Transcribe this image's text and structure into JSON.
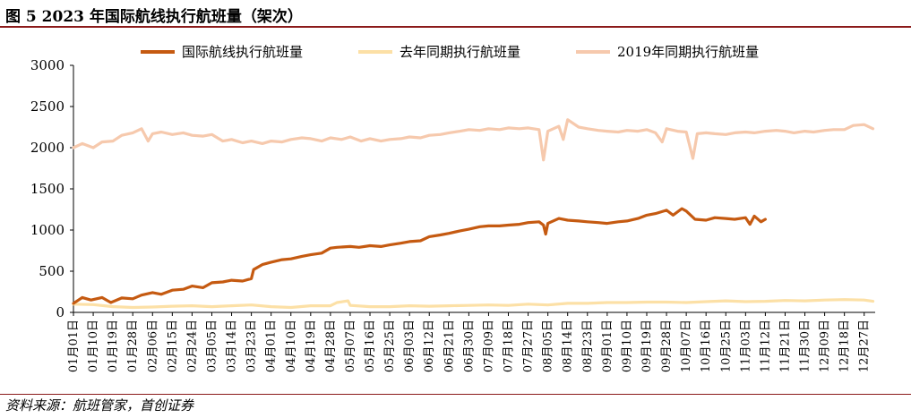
{
  "header": {
    "title": "图 5 2023 年国际航线执行航班量（架次）"
  },
  "footer": {
    "source": "资料来源：航班管家，首创证券"
  },
  "chart_data": {
    "type": "line",
    "title": "",
    "xlabel": "",
    "ylabel": "",
    "ylim": [
      0,
      3000
    ],
    "yticks": [
      0,
      500,
      1000,
      1500,
      2000,
      2500,
      3000
    ],
    "x_tick_labels": [
      "01月01日",
      "01月10日",
      "01月19日",
      "01月28日",
      "02月06日",
      "02月15日",
      "02月24日",
      "03月05日",
      "03月14日",
      "03月23日",
      "04月01日",
      "04月10日",
      "04月19日",
      "04月28日",
      "05月07日",
      "05月16日",
      "05月25日",
      "06月03日",
      "06月12日",
      "06月21日",
      "06月30日",
      "07月09日",
      "07月18日",
      "07月27日",
      "08月05日",
      "08月14日",
      "08月23日",
      "09月01日",
      "09月10日",
      "09月19日",
      "09月28日",
      "10月07日",
      "10月16日",
      "10月25日",
      "11月03日",
      "11月12日",
      "11月21日",
      "11月30日",
      "12月09日",
      "12月18日",
      "12月27日"
    ],
    "x_tick_days": [
      0,
      9,
      18,
      27,
      36,
      45,
      54,
      63,
      72,
      81,
      90,
      99,
      108,
      117,
      126,
      135,
      144,
      153,
      162,
      171,
      180,
      189,
      198,
      207,
      216,
      225,
      234,
      243,
      252,
      261,
      270,
      279,
      288,
      297,
      306,
      315,
      324,
      333,
      342,
      351,
      360
    ],
    "grid": false,
    "legend_position": "top",
    "series": [
      {
        "name": "国际航线执行航班量",
        "color": "#c55a11",
        "points": [
          [
            0,
            110
          ],
          [
            4,
            180
          ],
          [
            8,
            150
          ],
          [
            13,
            180
          ],
          [
            17,
            120
          ],
          [
            22,
            175
          ],
          [
            27,
            165
          ],
          [
            31,
            210
          ],
          [
            36,
            240
          ],
          [
            40,
            220
          ],
          [
            45,
            270
          ],
          [
            50,
            280
          ],
          [
            54,
            320
          ],
          [
            59,
            300
          ],
          [
            63,
            360
          ],
          [
            68,
            370
          ],
          [
            72,
            390
          ],
          [
            77,
            380
          ],
          [
            81,
            410
          ],
          [
            82,
            520
          ],
          [
            86,
            580
          ],
          [
            90,
            610
          ],
          [
            95,
            640
          ],
          [
            99,
            650
          ],
          [
            104,
            680
          ],
          [
            108,
            700
          ],
          [
            113,
            720
          ],
          [
            117,
            780
          ],
          [
            120,
            790
          ],
          [
            126,
            800
          ],
          [
            130,
            790
          ],
          [
            135,
            810
          ],
          [
            140,
            800
          ],
          [
            144,
            820
          ],
          [
            149,
            840
          ],
          [
            153,
            860
          ],
          [
            158,
            870
          ],
          [
            162,
            920
          ],
          [
            167,
            940
          ],
          [
            171,
            960
          ],
          [
            176,
            990
          ],
          [
            180,
            1010
          ],
          [
            185,
            1040
          ],
          [
            189,
            1050
          ],
          [
            194,
            1050
          ],
          [
            198,
            1060
          ],
          [
            203,
            1070
          ],
          [
            207,
            1090
          ],
          [
            212,
            1100
          ],
          [
            214,
            1060
          ],
          [
            215,
            950
          ],
          [
            216,
            1080
          ],
          [
            221,
            1140
          ],
          [
            225,
            1120
          ],
          [
            230,
            1110
          ],
          [
            234,
            1100
          ],
          [
            239,
            1090
          ],
          [
            243,
            1080
          ],
          [
            248,
            1100
          ],
          [
            252,
            1110
          ],
          [
            257,
            1140
          ],
          [
            261,
            1180
          ],
          [
            265,
            1200
          ],
          [
            270,
            1240
          ],
          [
            273,
            1180
          ],
          [
            277,
            1260
          ],
          [
            279,
            1230
          ],
          [
            283,
            1130
          ],
          [
            288,
            1120
          ],
          [
            292,
            1150
          ],
          [
            297,
            1140
          ],
          [
            301,
            1130
          ],
          [
            306,
            1150
          ],
          [
            308,
            1070
          ],
          [
            310,
            1170
          ],
          [
            313,
            1100
          ],
          [
            315,
            1130
          ]
        ]
      },
      {
        "name": "去年同期执行航班量",
        "color": "#fce0a6",
        "points": [
          [
            0,
            100
          ],
          [
            9,
            95
          ],
          [
            18,
            70
          ],
          [
            27,
            60
          ],
          [
            36,
            65
          ],
          [
            45,
            75
          ],
          [
            54,
            80
          ],
          [
            63,
            70
          ],
          [
            72,
            80
          ],
          [
            81,
            90
          ],
          [
            90,
            70
          ],
          [
            99,
            60
          ],
          [
            108,
            80
          ],
          [
            117,
            80
          ],
          [
            120,
            120
          ],
          [
            125,
            140
          ],
          [
            126,
            85
          ],
          [
            135,
            70
          ],
          [
            144,
            70
          ],
          [
            153,
            80
          ],
          [
            162,
            75
          ],
          [
            171,
            80
          ],
          [
            180,
            85
          ],
          [
            189,
            90
          ],
          [
            198,
            85
          ],
          [
            207,
            100
          ],
          [
            216,
            90
          ],
          [
            225,
            110
          ],
          [
            234,
            110
          ],
          [
            243,
            120
          ],
          [
            252,
            120
          ],
          [
            261,
            125
          ],
          [
            270,
            125
          ],
          [
            279,
            120
          ],
          [
            288,
            130
          ],
          [
            297,
            140
          ],
          [
            306,
            130
          ],
          [
            315,
            135
          ],
          [
            324,
            145
          ],
          [
            333,
            140
          ],
          [
            342,
            150
          ],
          [
            351,
            155
          ],
          [
            360,
            150
          ],
          [
            364,
            135
          ]
        ]
      },
      {
        "name": "2019年同期执行航班量",
        "color": "#f6c9ad",
        "points": [
          [
            0,
            2000
          ],
          [
            4,
            2050
          ],
          [
            9,
            2000
          ],
          [
            13,
            2070
          ],
          [
            18,
            2080
          ],
          [
            22,
            2150
          ],
          [
            27,
            2180
          ],
          [
            31,
            2230
          ],
          [
            34,
            2080
          ],
          [
            36,
            2170
          ],
          [
            40,
            2190
          ],
          [
            45,
            2160
          ],
          [
            50,
            2180
          ],
          [
            54,
            2150
          ],
          [
            59,
            2140
          ],
          [
            63,
            2160
          ],
          [
            68,
            2080
          ],
          [
            72,
            2100
          ],
          [
            77,
            2060
          ],
          [
            81,
            2080
          ],
          [
            86,
            2050
          ],
          [
            90,
            2080
          ],
          [
            95,
            2070
          ],
          [
            99,
            2100
          ],
          [
            104,
            2120
          ],
          [
            108,
            2110
          ],
          [
            113,
            2080
          ],
          [
            117,
            2120
          ],
          [
            122,
            2100
          ],
          [
            126,
            2130
          ],
          [
            131,
            2080
          ],
          [
            135,
            2110
          ],
          [
            140,
            2080
          ],
          [
            144,
            2100
          ],
          [
            149,
            2110
          ],
          [
            153,
            2130
          ],
          [
            158,
            2120
          ],
          [
            162,
            2150
          ],
          [
            167,
            2160
          ],
          [
            171,
            2180
          ],
          [
            176,
            2200
          ],
          [
            180,
            2220
          ],
          [
            185,
            2210
          ],
          [
            189,
            2230
          ],
          [
            194,
            2220
          ],
          [
            198,
            2240
          ],
          [
            203,
            2230
          ],
          [
            207,
            2240
          ],
          [
            212,
            2220
          ],
          [
            214,
            1850
          ],
          [
            216,
            2200
          ],
          [
            221,
            2260
          ],
          [
            223,
            2100
          ],
          [
            225,
            2340
          ],
          [
            230,
            2250
          ],
          [
            234,
            2230
          ],
          [
            239,
            2210
          ],
          [
            243,
            2200
          ],
          [
            248,
            2190
          ],
          [
            252,
            2210
          ],
          [
            257,
            2200
          ],
          [
            261,
            2220
          ],
          [
            265,
            2180
          ],
          [
            268,
            2070
          ],
          [
            270,
            2230
          ],
          [
            275,
            2200
          ],
          [
            279,
            2190
          ],
          [
            282,
            1870
          ],
          [
            284,
            2170
          ],
          [
            288,
            2180
          ],
          [
            292,
            2170
          ],
          [
            297,
            2160
          ],
          [
            301,
            2180
          ],
          [
            306,
            2190
          ],
          [
            310,
            2180
          ],
          [
            315,
            2200
          ],
          [
            320,
            2210
          ],
          [
            324,
            2200
          ],
          [
            328,
            2180
          ],
          [
            333,
            2200
          ],
          [
            337,
            2190
          ],
          [
            342,
            2210
          ],
          [
            346,
            2220
          ],
          [
            351,
            2220
          ],
          [
            355,
            2270
          ],
          [
            360,
            2280
          ],
          [
            364,
            2230
          ]
        ]
      }
    ]
  }
}
